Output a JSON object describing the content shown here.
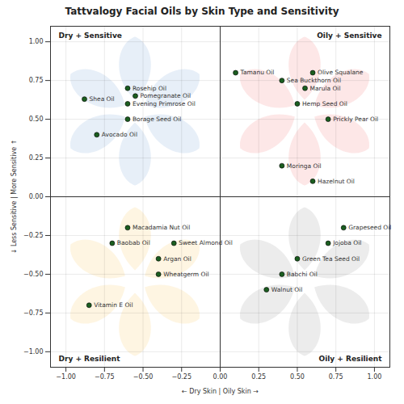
{
  "chart_data": {
    "type": "scatter",
    "title": "Tattvalogy Facial Oils by Skin Type and Sensitivity",
    "x_label": "← Dry Skin | Oily Skin →",
    "y_label": "↓ Less Sensitive | More Sensitive ↑",
    "xlim": [
      -1.1,
      1.1
    ],
    "ylim": [
      -1.1,
      1.1
    ],
    "xticks": [
      {
        "value": -1,
        "label": "−1.00"
      },
      {
        "value": -0.75,
        "label": "−0.75"
      },
      {
        "value": -0.5,
        "label": "−0.50"
      },
      {
        "value": -0.25,
        "label": "−0.25"
      },
      {
        "value": 0,
        "label": "0.00"
      },
      {
        "value": 0.25,
        "label": "0.25"
      },
      {
        "value": 0.5,
        "label": "0.50"
      },
      {
        "value": 0.75,
        "label": "0.75"
      },
      {
        "value": 1,
        "label": "1.00"
      }
    ],
    "yticks": [
      {
        "value": -1,
        "label": "−1.00"
      },
      {
        "value": -0.75,
        "label": "−0.75"
      },
      {
        "value": -0.5,
        "label": "−0.50"
      },
      {
        "value": -0.25,
        "label": "−0.25"
      },
      {
        "value": 0,
        "label": "0.00"
      },
      {
        "value": 0.25,
        "label": "0.25"
      },
      {
        "value": 0.5,
        "label": "0.50"
      },
      {
        "value": 0.75,
        "label": "0.75"
      },
      {
        "value": 1,
        "label": "1.00"
      }
    ],
    "grid": true,
    "color": "#1b5e20",
    "marker": "circle",
    "divider": {
      "x": 0,
      "y": 0
    },
    "quadrants": [
      {
        "label": "Dry + Sensitive",
        "color": "#c9dcef"
      },
      {
        "label": "Oily + Sensitive",
        "color": "#fbcaca"
      },
      {
        "label": "Dry + Resilient",
        "color": "#fde9bf"
      },
      {
        "label": "Oily + Resilient",
        "color": "#d4d4d4"
      }
    ],
    "points": [
      {
        "label": "Rosehip Oil",
        "x": -0.6,
        "y": 0.7
      },
      {
        "label": "Pomegranate Oil",
        "x": -0.55,
        "y": 0.65
      },
      {
        "label": "Shea Oil",
        "x": -0.88,
        "y": 0.63
      },
      {
        "label": "Evening Primrose Oil",
        "x": -0.6,
        "y": 0.6
      },
      {
        "label": "Borage Seed Oil",
        "x": -0.6,
        "y": 0.5
      },
      {
        "label": "Avocado Oil",
        "x": -0.8,
        "y": 0.4
      },
      {
        "label": "Tamanu Oil",
        "x": 0.1,
        "y": 0.8
      },
      {
        "label": "Olive Squalane",
        "x": 0.6,
        "y": 0.8
      },
      {
        "label": "Sea Buckthorn Oil",
        "x": 0.4,
        "y": 0.75
      },
      {
        "label": "Marula Oil",
        "x": 0.55,
        "y": 0.7
      },
      {
        "label": "Hemp Seed Oil",
        "x": 0.5,
        "y": 0.6
      },
      {
        "label": "Prickly Pear Oil",
        "x": 0.7,
        "y": 0.5
      },
      {
        "label": "Moringa Oil",
        "x": 0.4,
        "y": 0.2
      },
      {
        "label": "Hazelnut Oil",
        "x": 0.6,
        "y": 0.1
      },
      {
        "label": "Macadamia Nut Oil",
        "x": -0.6,
        "y": -0.2
      },
      {
        "label": "Baobab Oil",
        "x": -0.7,
        "y": -0.3
      },
      {
        "label": "Sweet Almond Oil",
        "x": -0.3,
        "y": -0.3
      },
      {
        "label": "Argan Oil",
        "x": -0.4,
        "y": -0.4
      },
      {
        "label": "Wheatgerm Oil",
        "x": -0.4,
        "y": -0.5
      },
      {
        "label": "Vitamin E Oil",
        "x": -0.85,
        "y": -0.7
      },
      {
        "label": "Grapeseed Oil",
        "x": 0.8,
        "y": -0.2
      },
      {
        "label": "Jojoba Oil",
        "x": 0.7,
        "y": -0.3
      },
      {
        "label": "Green Tea Seed Oil",
        "x": 0.5,
        "y": -0.4
      },
      {
        "label": "Babchi Oil",
        "x": 0.4,
        "y": -0.5
      },
      {
        "label": "Walnut Oil",
        "x": 0.3,
        "y": -0.6
      }
    ]
  }
}
